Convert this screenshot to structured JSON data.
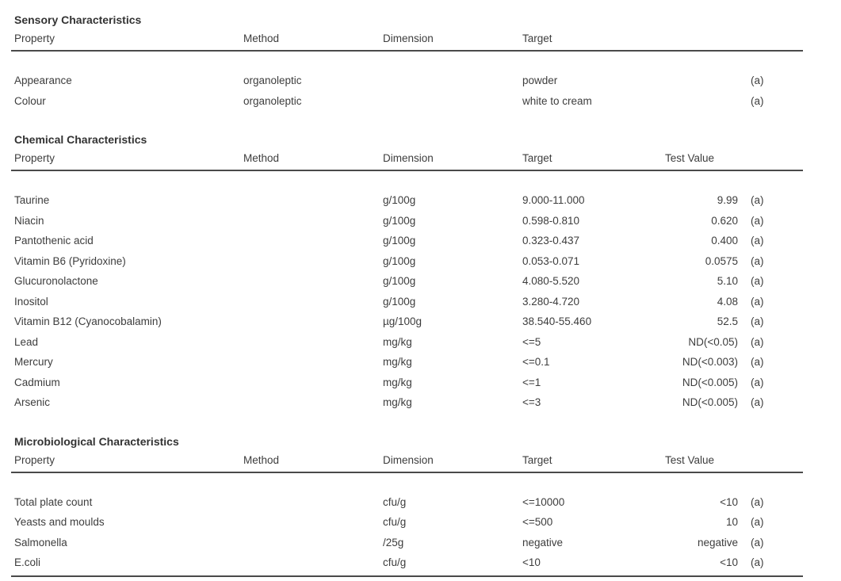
{
  "sections": [
    {
      "title": "Sensory Characteristics",
      "headers": {
        "property": "Property",
        "method": "Method",
        "dimension": "Dimension",
        "target": "Target",
        "test_value": "",
        "flag": ""
      },
      "rows": [
        {
          "property": "Appearance",
          "method": "organoleptic",
          "dimension": "",
          "target": "powder",
          "test_value": "",
          "flag": "(a)"
        },
        {
          "property": "Colour",
          "method": "organoleptic",
          "dimension": "",
          "target": "white to cream",
          "test_value": "",
          "flag": "(a)"
        }
      ]
    },
    {
      "title": "Chemical Characteristics",
      "headers": {
        "property": "Property",
        "method": "Method",
        "dimension": "Dimension",
        "target": "Target",
        "test_value": "Test Value",
        "flag": ""
      },
      "rows": [
        {
          "property": "Taurine",
          "method": "",
          "dimension": "g/100g",
          "target": "9.000-11.000",
          "test_value": "9.99",
          "flag": "(a)"
        },
        {
          "property": "Niacin",
          "method": "",
          "dimension": "g/100g",
          "target": "0.598-0.810",
          "test_value": "0.620",
          "flag": "(a)"
        },
        {
          "property": "Pantothenic acid",
          "method": "",
          "dimension": "g/100g",
          "target": "0.323-0.437",
          "test_value": "0.400",
          "flag": "(a)"
        },
        {
          "property": "Vitamin B6 (Pyridoxine)",
          "method": "",
          "dimension": "g/100g",
          "target": "0.053-0.071",
          "test_value": "0.0575",
          "flag": "(a)"
        },
        {
          "property": "Glucuronolactone",
          "method": "",
          "dimension": "g/100g",
          "target": "4.080-5.520",
          "test_value": "5.10",
          "flag": "(a)"
        },
        {
          "property": "Inositol",
          "method": "",
          "dimension": "g/100g",
          "target": "3.280-4.720",
          "test_value": "4.08",
          "flag": "(a)"
        },
        {
          "property": "Vitamin B12 (Cyanocobalamin)",
          "method": "",
          "dimension": "µg/100g",
          "target": "38.540-55.460",
          "test_value": "52.5",
          "flag": "(a)"
        },
        {
          "property": "Lead",
          "method": "",
          "dimension": "mg/kg",
          "target": "<=5",
          "test_value": "ND(<0.05)",
          "flag": "(a)"
        },
        {
          "property": "Mercury",
          "method": "",
          "dimension": "mg/kg",
          "target": "<=0.1",
          "test_value": "ND(<0.003)",
          "flag": "(a)"
        },
        {
          "property": "Cadmium",
          "method": "",
          "dimension": "mg/kg",
          "target": "<=1",
          "test_value": "ND(<0.005)",
          "flag": "(a)"
        },
        {
          "property": "Arsenic",
          "method": "",
          "dimension": "mg/kg",
          "target": "<=3",
          "test_value": "ND(<0.005)",
          "flag": "(a)"
        }
      ]
    },
    {
      "title": "Microbiological Characteristics",
      "headers": {
        "property": "Property",
        "method": "Method",
        "dimension": "Dimension",
        "target": "Target",
        "test_value": "Test Value",
        "flag": ""
      },
      "rows": [
        {
          "property": "Total plate count",
          "method": "",
          "dimension": "cfu/g",
          "target": "<=10000",
          "test_value": "<10",
          "flag": "(a)"
        },
        {
          "property": "Yeasts and moulds",
          "method": "",
          "dimension": "cfu/g",
          "target": "<=500",
          "test_value": "10",
          "flag": "(a)"
        },
        {
          "property": "Salmonella",
          "method": "",
          "dimension": "/25g",
          "target": "negative",
          "test_value": "negative",
          "flag": "(a)"
        },
        {
          "property": "E.coli",
          "method": "",
          "dimension": "cfu/g",
          "target": "<10",
          "test_value": "<10",
          "flag": "(a)"
        }
      ]
    }
  ]
}
